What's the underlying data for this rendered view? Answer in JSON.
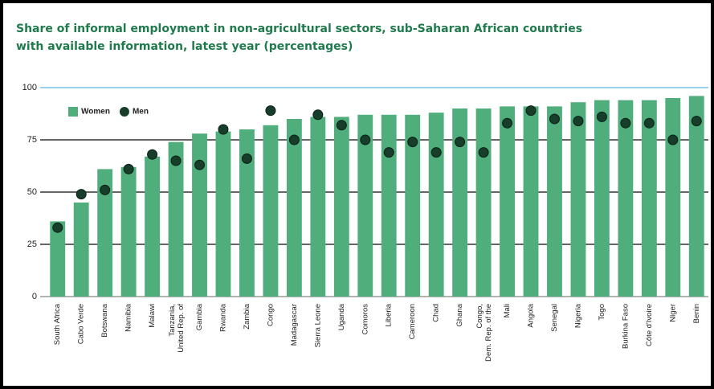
{
  "chart_data": {
    "type": "bar",
    "title": [
      "Share of informal employment in non-agricultural sectors, sub-Saharan African countries",
      "with available information, latest year (percentages)"
    ],
    "categories": [
      "South Africa",
      "Cabo Verde",
      "Botswana",
      "Namibia",
      "Malawi",
      "Tanzania, United Rep. of",
      "Gambia",
      "Rwanda",
      "Zambia",
      "Congo",
      "Madagascar",
      "Sierra Leone",
      "Uganda",
      "Comoros",
      "Liberia",
      "Cameroon",
      "Chad",
      "Ghana",
      "Congo, Dem. Rep. of the",
      "Mali",
      "Angola",
      "Senegal",
      "Nigeria",
      "Togo",
      "Burkina Faso",
      "Côte d'Ivoire",
      "Niger",
      "Benin"
    ],
    "series": [
      {
        "name": "Women",
        "color": "#4fae7b",
        "marker": "bar",
        "values": [
          36,
          45,
          61,
          62,
          67,
          74,
          78,
          79,
          80,
          82,
          85,
          86,
          86,
          87,
          87,
          87,
          88,
          90,
          90,
          91,
          91,
          91,
          93,
          94,
          94,
          94,
          95,
          96
        ]
      },
      {
        "name": "Men",
        "color": "#173d2b",
        "marker": "dot",
        "values": [
          33,
          49,
          51,
          61,
          68,
          65,
          63,
          80,
          66,
          89,
          75,
          87,
          82,
          75,
          69,
          74,
          69,
          74,
          69,
          83,
          89,
          85,
          84,
          86,
          83,
          83,
          75,
          84
        ]
      }
    ],
    "ylim": [
      0,
      100
    ],
    "yticks": [
      0,
      25,
      50,
      75,
      100
    ],
    "grid": true,
    "legend": "upper left"
  }
}
